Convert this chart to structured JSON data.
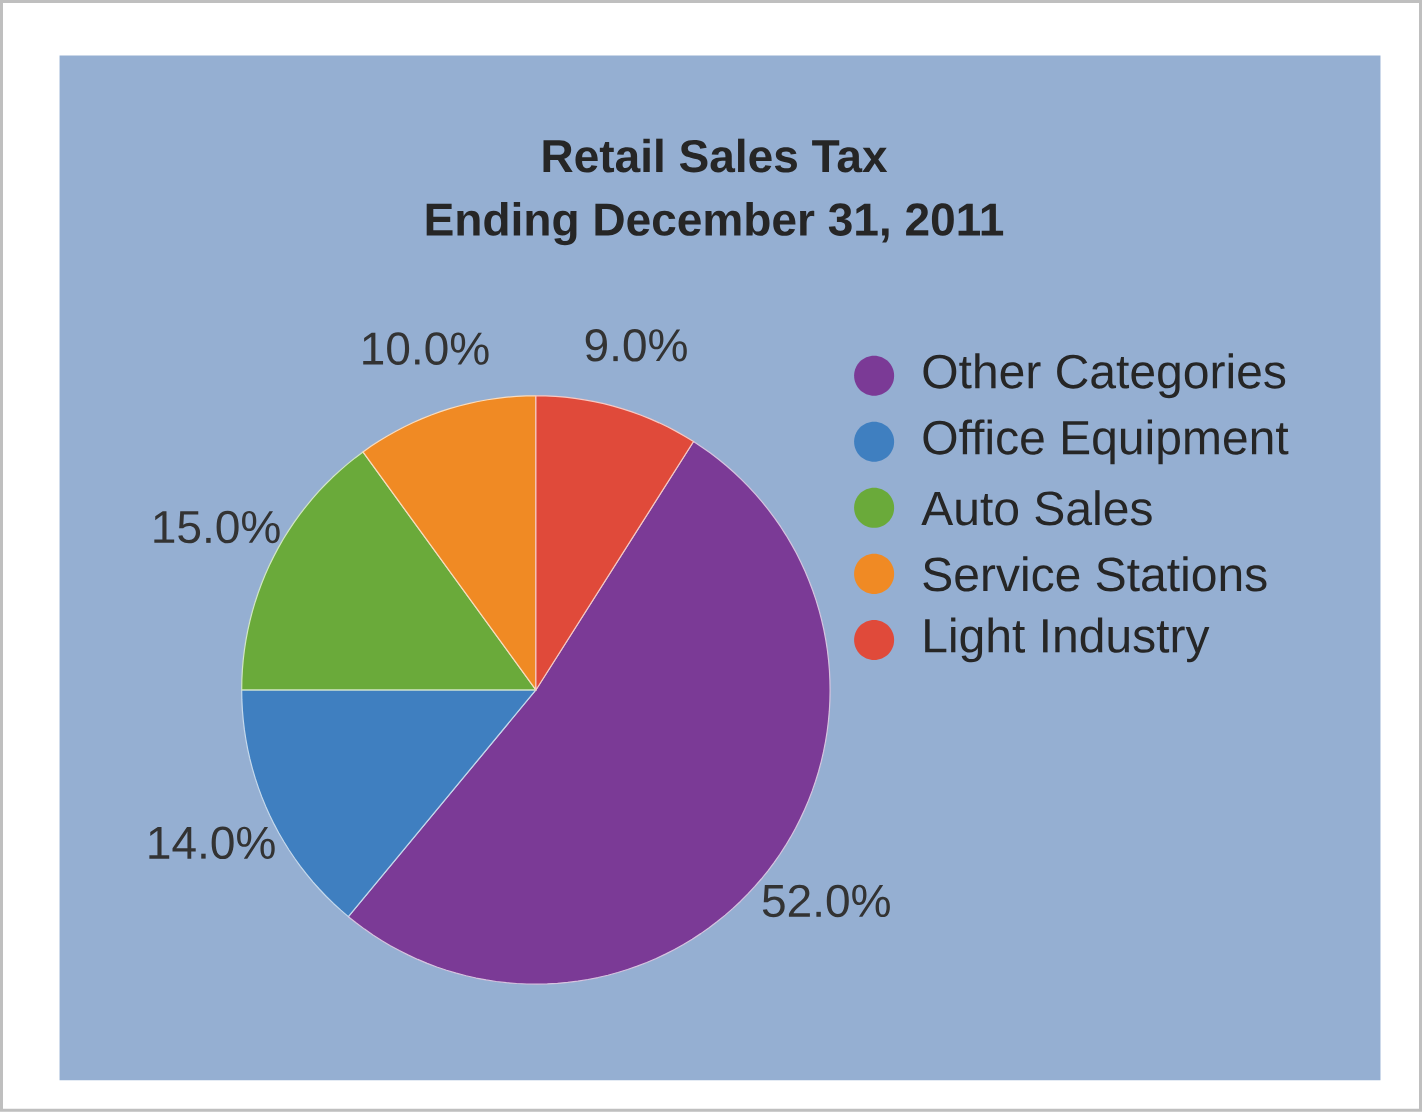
{
  "chart_data": {
    "type": "pie",
    "title": "Retail Sales Tax",
    "subtitle": "Ending December 31, 2011",
    "categories": [
      "Other Categories",
      "Office Equipment",
      "Auto Sales",
      "Service Stations",
      "Light Industry"
    ],
    "values": [
      52,
      14,
      15,
      10,
      9
    ],
    "colors": [
      "#7b3a96",
      "#3f7fc0",
      "#6aaa3a",
      "#f08a24",
      "#e04a3a"
    ],
    "value_labels": [
      "52.0%",
      "14.0%",
      "15.0%",
      "10.0%",
      "9.0%"
    ],
    "legend": "right"
  }
}
